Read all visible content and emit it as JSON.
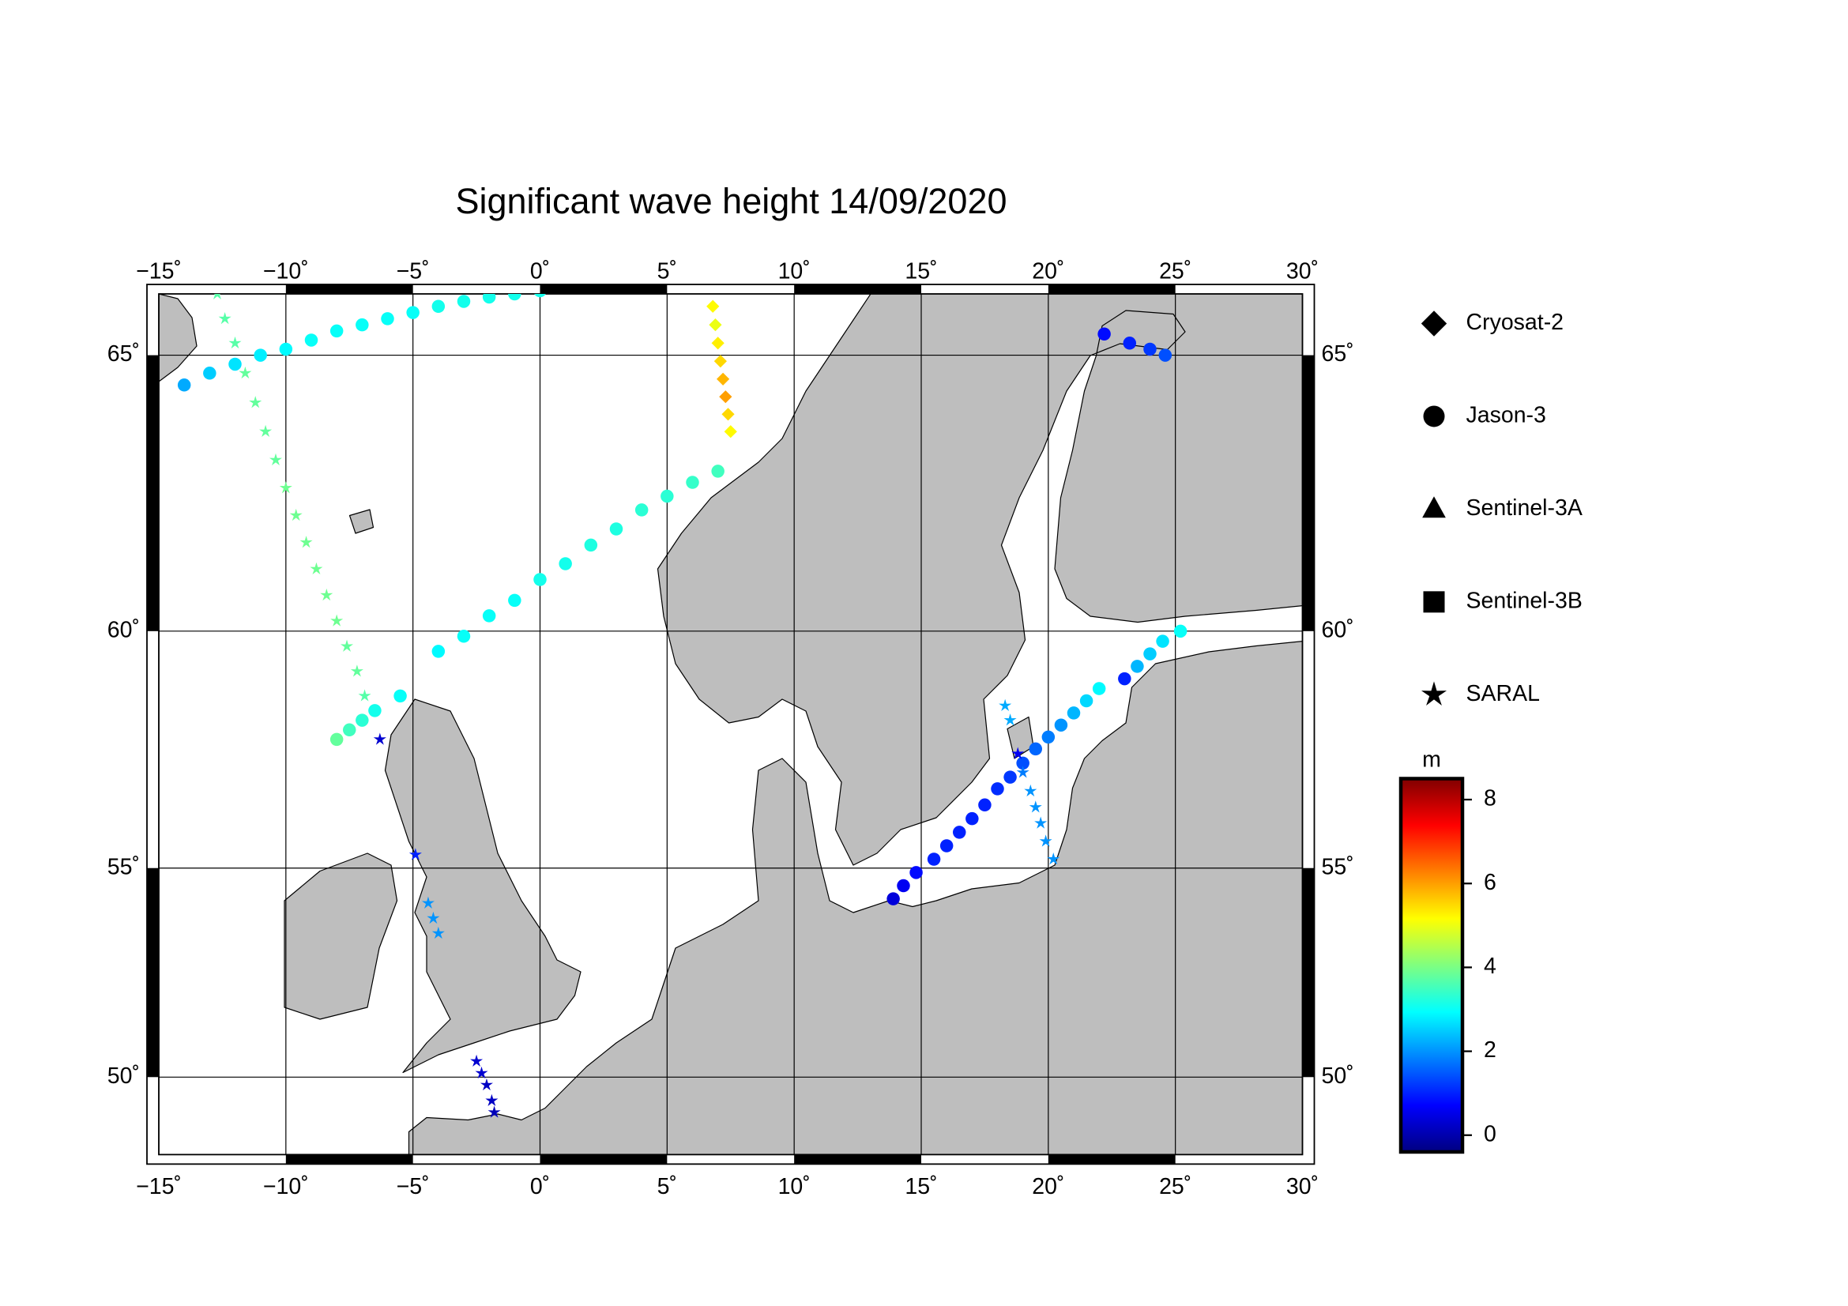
{
  "chart_data": {
    "type": "map",
    "title": "Significant wave height 14/09/2020",
    "projection": "mercator",
    "xlim": [
      -15,
      30
    ],
    "ylim": [
      48,
      66
    ],
    "xticks": [
      {
        "value": -15,
        "label": "−15˚"
      },
      {
        "value": -10,
        "label": "−10˚"
      },
      {
        "value": -5,
        "label": "−5˚"
      },
      {
        "value": 0,
        "label": "0˚"
      },
      {
        "value": 5,
        "label": "5˚"
      },
      {
        "value": 10,
        "label": "10˚"
      },
      {
        "value": 15,
        "label": "15˚"
      },
      {
        "value": 20,
        "label": "20˚"
      },
      {
        "value": 25,
        "label": "25˚"
      },
      {
        "value": 30,
        "label": "30˚"
      }
    ],
    "yticks": [
      {
        "value": 50,
        "label": "50˚"
      },
      {
        "value": 55,
        "label": "55˚"
      },
      {
        "value": 60,
        "label": "60˚"
      },
      {
        "value": 65,
        "label": "65˚"
      }
    ],
    "grid": true,
    "colormap": "jet",
    "colorbar_label": "m",
    "clim": [
      -0.4,
      8.5
    ],
    "cticks": [
      0,
      2,
      4,
      6,
      8
    ],
    "series": [
      {
        "name": "Cryosat-2",
        "marker": "diamond",
        "x": [
          6.8,
          6.9,
          7.0,
          7.1,
          7.2,
          7.3,
          7.4,
          7.5
        ],
        "y": [
          65.8,
          65.5,
          65.2,
          64.9,
          64.6,
          64.3,
          64.0,
          63.7
        ],
        "values": [
          5.2,
          5.0,
          5.3,
          5.5,
          5.8,
          6.0,
          5.5,
          5.2
        ]
      },
      {
        "name": "Jason-3",
        "marker": "circle",
        "x": [
          -14,
          -13,
          -12,
          -11,
          -10,
          -9,
          -8,
          -7,
          -6,
          -5,
          -4,
          -3,
          -2,
          -1,
          0,
          -8,
          -7.5,
          -7,
          -6.5,
          -5.5,
          -4,
          -3,
          -2,
          -1,
          0,
          1,
          2,
          3,
          4,
          5,
          6,
          7,
          13.9,
          14.3,
          14.8,
          15.5,
          16,
          16.5,
          17,
          17.5,
          18,
          18.5,
          19,
          19.5,
          20,
          20.5,
          21,
          21.5,
          22,
          23,
          23.5,
          24,
          24.5,
          25.2,
          22.2,
          23.2,
          24,
          24.6
        ],
        "y": [
          64.5,
          64.7,
          64.85,
          65.0,
          65.1,
          65.25,
          65.4,
          65.5,
          65.6,
          65.7,
          65.8,
          65.88,
          65.95,
          66.0,
          66.05,
          57.8,
          58.0,
          58.2,
          58.4,
          58.7,
          59.6,
          59.9,
          60.3,
          60.6,
          61.0,
          61.3,
          61.65,
          61.95,
          62.3,
          62.55,
          62.8,
          63.0,
          54.3,
          54.6,
          54.9,
          55.2,
          55.5,
          55.8,
          56.1,
          56.4,
          56.75,
          57.0,
          57.3,
          57.6,
          57.85,
          58.1,
          58.35,
          58.6,
          58.85,
          59.05,
          59.3,
          59.55,
          59.8,
          60.0,
          65.35,
          65.2,
          65.1,
          65.0
        ],
        "values": [
          2.2,
          2.5,
          2.7,
          2.8,
          2.9,
          3.0,
          3.0,
          3.0,
          3.0,
          3.0,
          3.1,
          3.1,
          3.1,
          3.1,
          3.1,
          3.8,
          3.5,
          3.3,
          3.1,
          3.0,
          2.9,
          3.0,
          3.0,
          3.0,
          3.1,
          3.1,
          3.2,
          3.2,
          3.3,
          3.3,
          3.4,
          3.5,
          0.4,
          0.6,
          0.8,
          1.0,
          1.0,
          1.0,
          1.0,
          1.0,
          1.1,
          1.2,
          1.4,
          1.6,
          1.8,
          2.0,
          2.3,
          2.6,
          2.9,
          1.0,
          2.3,
          2.5,
          2.7,
          3.0,
          0.8,
          1.0,
          1.2,
          1.4
        ]
      },
      {
        "name": "Sentinel-3A",
        "marker": "triangle",
        "x": [],
        "y": [],
        "values": []
      },
      {
        "name": "Sentinel-3B",
        "marker": "square",
        "x": [],
        "y": [],
        "values": []
      },
      {
        "name": "SARAL",
        "marker": "star",
        "x": [
          -12.7,
          -12.4,
          -12,
          -11.6,
          -11.2,
          -10.8,
          -10.4,
          -10,
          -9.6,
          -9.2,
          -8.8,
          -8.4,
          -8,
          -7.6,
          -7.2,
          -6.9,
          -6.3,
          -4.9,
          -4.4,
          -4.2,
          -4.0,
          -2.5,
          -2.3,
          -2.1,
          -1.9,
          -1.8,
          18.3,
          18.5,
          18.8,
          19,
          19.3,
          19.5,
          19.7,
          19.9,
          20.2
        ],
        "y": [
          66.0,
          65.6,
          65.2,
          64.7,
          64.2,
          63.7,
          63.2,
          62.7,
          62.2,
          61.7,
          61.2,
          60.7,
          60.2,
          59.7,
          59.2,
          58.7,
          57.8,
          55.3,
          54.2,
          53.85,
          53.5,
          50.4,
          50.1,
          49.8,
          49.4,
          49.1,
          58.5,
          58.2,
          57.5,
          57.1,
          56.7,
          56.35,
          56.0,
          55.6,
          55.2
        ],
        "values": [
          3.7,
          3.7,
          3.7,
          3.8,
          3.8,
          3.8,
          3.8,
          3.9,
          3.9,
          3.9,
          3.9,
          3.9,
          3.9,
          3.8,
          3.8,
          3.7,
          0.3,
          1.0,
          2.0,
          2.0,
          2.0,
          0.3,
          0.3,
          0.2,
          0.2,
          0.1,
          2.2,
          2.2,
          0.6,
          1.8,
          2.0,
          2.0,
          2.0,
          2.0,
          2.0
        ]
      }
    ]
  }
}
